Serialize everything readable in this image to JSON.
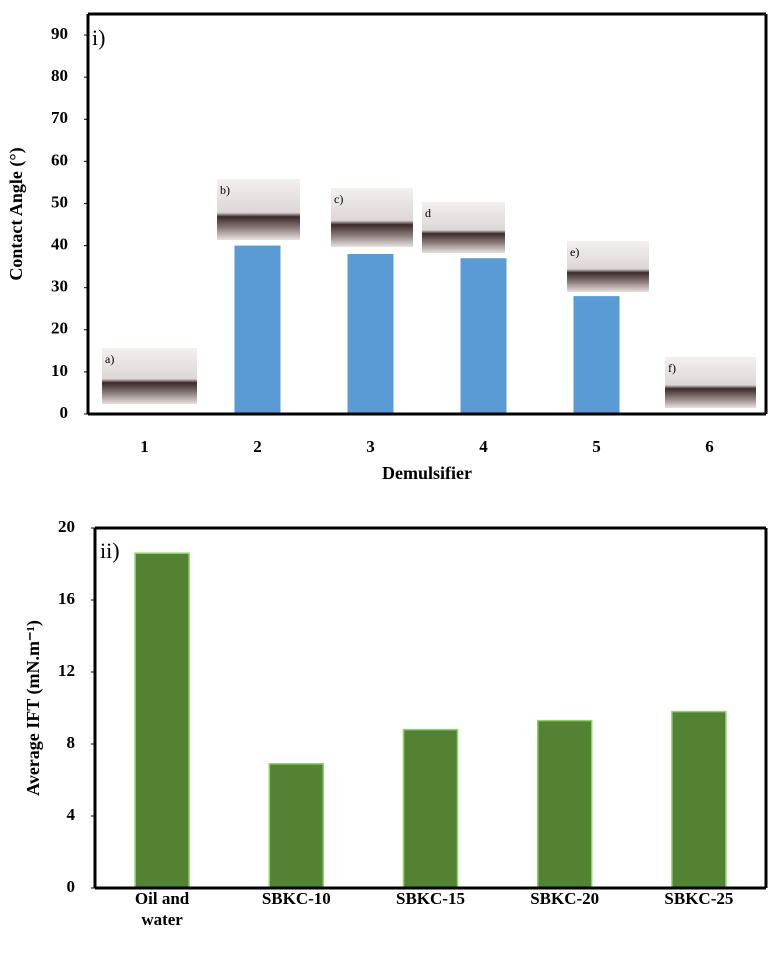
{
  "chart_data": [
    {
      "type": "bar",
      "panel_label": "i)",
      "y_label": "Contact Angle (°)",
      "x_label": "Demulsifier",
      "categories": [
        "1",
        "2",
        "3",
        "4",
        "5",
        "6"
      ],
      "values": [
        0,
        40,
        38,
        37,
        28,
        0
      ],
      "color": "#5b9bd5",
      "ylim": [
        0,
        95
      ],
      "yticks": [
        0,
        10,
        20,
        30,
        40,
        50,
        60,
        70,
        80,
        90
      ],
      "insets": [
        "a)",
        "b)",
        "c)",
        "d",
        "e)",
        "f)"
      ]
    },
    {
      "type": "bar",
      "panel_label": "ii)",
      "y_label": "Average IFT (mN.m⁻¹)",
      "categories": [
        "Oil and water",
        "SBKC-10",
        "SBKC-15",
        "SBKC-20",
        "SBKC-25"
      ],
      "values": [
        18.6,
        6.9,
        8.8,
        9.3,
        9.8
      ],
      "color": "#548235",
      "ylim": [
        0,
        20
      ],
      "yticks": [
        0,
        4,
        8,
        12,
        16,
        20
      ]
    }
  ]
}
